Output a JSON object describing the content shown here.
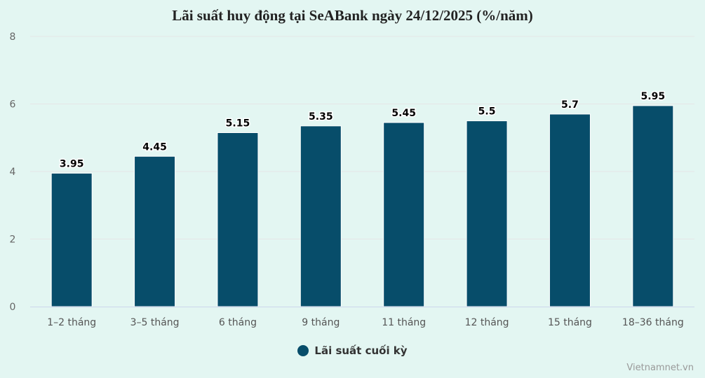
{
  "chart_data": {
    "type": "bar",
    "title": "Lãi suất huy động tại SeABank ngày 24/12/2025 (%/năm)",
    "categories": [
      "1-2 tháng",
      "3-5 tháng",
      "6 tháng",
      "9 tháng",
      "11 tháng",
      "12 tháng",
      "15 tháng",
      "18-36 tháng"
    ],
    "series": [
      {
        "name": "Lãi suất cuối kỳ",
        "values": [
          3.95,
          4.45,
          5.15,
          5.35,
          5.45,
          5.5,
          5.7,
          5.95
        ],
        "color": "#074d6a"
      }
    ],
    "data_labels": [
      "3.95",
      "4.45",
      "5.15",
      "5.35",
      "5.45",
      "5.5",
      "5.7",
      "5.95"
    ],
    "yticks": [
      "0",
      "2",
      "4",
      "6",
      "8"
    ],
    "ylim": [
      0,
      8
    ],
    "grid": true,
    "legend_position": "bottom"
  },
  "credit": "Vietnamnet.vn"
}
